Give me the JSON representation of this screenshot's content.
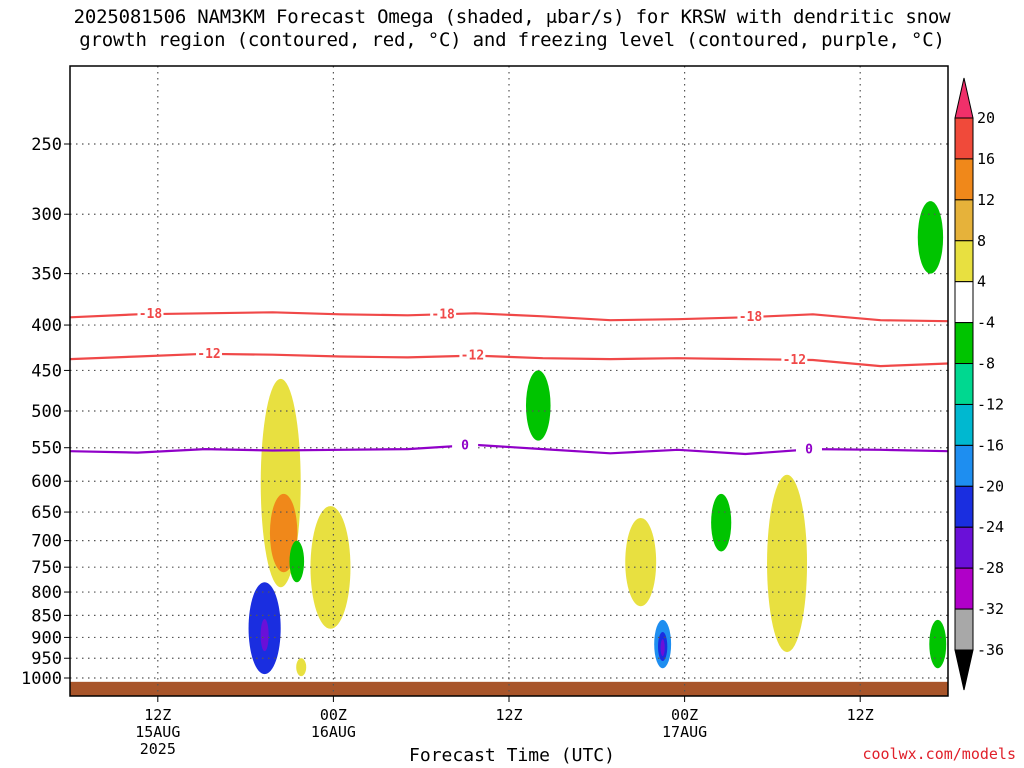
{
  "title_line1": "2025081506 NAM3KM Forecast Omega (shaded, μbar/s) for KRSW with dendritic snow",
  "title_line2": "growth region (contoured, red, °C) and freezing level (contoured, purple, °C)",
  "credit": "coolwx.com/models",
  "chart_data": {
    "type": "time-height cross-section",
    "xlabel": "Forecast Time (UTC)",
    "x_ticks": [
      {
        "label": "12Z",
        "sub": "15AUG",
        "sub2": "2025",
        "hour": 6
      },
      {
        "label": "00Z",
        "sub": "16AUG",
        "sub2": "",
        "hour": 18
      },
      {
        "label": "12Z",
        "sub": "",
        "sub2": "",
        "hour": 30
      },
      {
        "label": "00Z",
        "sub": "17AUG",
        "sub2": "",
        "hour": 42
      },
      {
        "label": "12Z",
        "sub": "",
        "sub2": "",
        "hour": 54
      }
    ],
    "xlim_hours": [
      0,
      60
    ],
    "y_ticks": [
      250,
      300,
      350,
      400,
      450,
      500,
      550,
      600,
      650,
      700,
      750,
      800,
      850,
      900,
      950,
      1000
    ],
    "ylim_hPa": [
      1020,
      200
    ],
    "y_scale": "log-pressure",
    "grid": "dotted",
    "colorbar": {
      "levels": [
        "20",
        "16",
        "12",
        "8",
        "4",
        "-4",
        "-8",
        "-12",
        "-16",
        "-20",
        "-24",
        "-28",
        "-32",
        "-36"
      ],
      "colors": [
        "#f0306a",
        "#f04a3a",
        "#f0881a",
        "#e6b23a",
        "#e8e040",
        "#ffffff",
        "#00c400",
        "#00d890",
        "#00b8d0",
        "#1e8ef0",
        "#1a2ee0",
        "#6a10d8",
        "#b000c8",
        "#a8a8a8",
        "#000000"
      ]
    },
    "isotherms": [
      {
        "name": "-18",
        "color": "#f04848",
        "level_hPa": [
          392,
          389,
          388,
          387,
          389,
          390,
          388,
          391,
          395,
          394,
          392,
          389,
          395,
          396
        ],
        "labels": [
          {
            "hour": 5.5,
            "text": "-18"
          },
          {
            "hour": 25.5,
            "text": "-18"
          },
          {
            "hour": 46.5,
            "text": "-18"
          }
        ]
      },
      {
        "name": "-12",
        "color": "#f04848",
        "level_hPa": [
          437,
          434,
          431,
          432,
          434,
          435,
          433,
          436,
          437,
          436,
          437,
          438,
          445,
          442
        ],
        "labels": [
          {
            "hour": 9.5,
            "text": "-12"
          },
          {
            "hour": 27.5,
            "text": "-12"
          },
          {
            "hour": 49.5,
            "text": "-12"
          }
        ]
      },
      {
        "name": "0",
        "color": "#9000c8",
        "level_hPa": [
          555,
          557,
          552,
          554,
          553,
          552,
          546,
          552,
          558,
          553,
          559,
          552,
          553,
          555
        ],
        "labels": [
          {
            "hour": 27,
            "text": "0"
          },
          {
            "hour": 50.5,
            "text": "0"
          }
        ]
      }
    ],
    "omega_features": [
      {
        "hour": 14.4,
        "top_hPa": 460,
        "bottom_hPa": 790,
        "value": 8,
        "color": "#e8e040"
      },
      {
        "hour": 14.6,
        "top_hPa": 620,
        "bottom_hPa": 760,
        "value": 14,
        "color": "#f0881a"
      },
      {
        "hour": 17.8,
        "top_hPa": 640,
        "bottom_hPa": 880,
        "value": 8,
        "color": "#e8e040"
      },
      {
        "hour": 15.5,
        "top_hPa": 700,
        "bottom_hPa": 780,
        "value": -6,
        "color": "#00c400"
      },
      {
        "hour": 13.3,
        "top_hPa": 780,
        "bottom_hPa": 990,
        "value": -26,
        "color": "#1a2ee0"
      },
      {
        "hour": 15.8,
        "top_hPa": 950,
        "bottom_hPa": 995,
        "value": 5,
        "color": "#e8e040"
      },
      {
        "hour": 32.0,
        "top_hPa": 450,
        "bottom_hPa": 540,
        "value": -6,
        "color": "#00c400"
      },
      {
        "hour": 39.0,
        "top_hPa": 660,
        "bottom_hPa": 830,
        "value": 6,
        "color": "#e8e040"
      },
      {
        "hour": 40.5,
        "top_hPa": 860,
        "bottom_hPa": 975,
        "value": -16,
        "color": "#1e8ef0"
      },
      {
        "hour": 44.5,
        "top_hPa": 620,
        "bottom_hPa": 720,
        "value": -6,
        "color": "#00c400"
      },
      {
        "hour": 49.0,
        "top_hPa": 590,
        "bottom_hPa": 935,
        "value": 6,
        "color": "#e8e040"
      },
      {
        "hour": 58.8,
        "top_hPa": 290,
        "bottom_hPa": 350,
        "value": -6,
        "color": "#00c400"
      },
      {
        "hour": 59.3,
        "top_hPa": 860,
        "bottom_hPa": 975,
        "value": -10,
        "color": "#00c400"
      }
    ],
    "terrain": {
      "surface_hPa": 1010,
      "color": "#a8552a"
    }
  }
}
